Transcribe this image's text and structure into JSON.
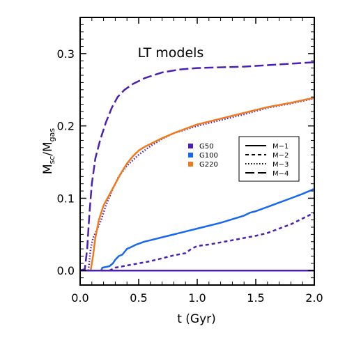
{
  "chart_data": {
    "type": "line",
    "title": "LT models",
    "xlabel": "t (Gyr)",
    "ylabel_main": "M",
    "ylabel_sub1": "sc",
    "ylabel_sep": "/M",
    "ylabel_sub2": "gas",
    "xlim": [
      0,
      2
    ],
    "ylim": [
      -0.02,
      0.35
    ],
    "x_ticks": [
      0,
      0.5,
      1.0,
      1.5,
      2.0
    ],
    "x_tick_labels": [
      "0.0",
      "0.5",
      "1.0",
      "1.5",
      "2.0"
    ],
    "y_ticks": [
      0,
      0.1,
      0.2,
      0.3
    ],
    "y_tick_labels": [
      "0.0",
      "0.1",
      "0.2",
      "0.3"
    ],
    "grid": false,
    "color_legend": [
      {
        "label": "G50",
        "color": "#4b1fb4"
      },
      {
        "label": "G100",
        "color": "#1767f0"
      },
      {
        "label": "G220",
        "color": "#f07a1c"
      }
    ],
    "style_legend": [
      {
        "label": "M−1",
        "dash": ""
      },
      {
        "label": "M−2",
        "dash": "5,4"
      },
      {
        "label": "M−3",
        "dash": "1.5,2.5"
      },
      {
        "label": "M−4",
        "dash": "13,5"
      }
    ],
    "series": [
      {
        "color": "#4b1fb4",
        "dash": "13,5",
        "x": [
          0,
          0.04,
          0.06,
          0.08,
          0.1,
          0.13,
          0.17,
          0.22,
          0.27,
          0.32,
          0.38,
          0.45,
          0.55,
          0.7,
          0.85,
          1.0,
          1.2,
          1.4,
          1.6,
          1.8,
          2.0
        ],
        "y": [
          0,
          0.002,
          0.03,
          0.08,
          0.12,
          0.155,
          0.18,
          0.205,
          0.225,
          0.24,
          0.25,
          0.258,
          0.266,
          0.274,
          0.278,
          0.28,
          0.281,
          0.282,
          0.284,
          0.286,
          0.288
        ]
      },
      {
        "color": "#4b1fb4",
        "dash": "1.5,2.5",
        "x": [
          0,
          0.07,
          0.09,
          0.11,
          0.14,
          0.18,
          0.22,
          0.27,
          0.33,
          0.4,
          0.5,
          0.6,
          0.7,
          0.8,
          1.0,
          1.2,
          1.4,
          1.6,
          1.8,
          2.0
        ],
        "y": [
          0,
          0,
          0.03,
          0.045,
          0.055,
          0.07,
          0.09,
          0.11,
          0.13,
          0.145,
          0.16,
          0.172,
          0.182,
          0.19,
          0.2,
          0.208,
          0.216,
          0.225,
          0.231,
          0.238
        ]
      },
      {
        "color": "#f07a1c",
        "dash": "",
        "x": [
          0,
          0.09,
          0.11,
          0.13,
          0.16,
          0.2,
          0.25,
          0.3,
          0.35,
          0.4,
          0.45,
          0.5,
          0.55,
          0.6,
          0.7,
          0.8,
          0.9,
          1.0,
          1.2,
          1.4,
          1.6,
          1.8,
          2.0
        ],
        "y": [
          0,
          0,
          0.02,
          0.045,
          0.07,
          0.09,
          0.105,
          0.12,
          0.135,
          0.148,
          0.158,
          0.166,
          0.171,
          0.175,
          0.183,
          0.19,
          0.196,
          0.202,
          0.21,
          0.218,
          0.226,
          0.232,
          0.239
        ]
      },
      {
        "color": "#1767f0",
        "dash": "",
        "x": [
          0.18,
          0.19,
          0.25,
          0.28,
          0.3,
          0.33,
          0.36,
          0.4,
          0.43,
          0.48,
          0.55,
          0.6,
          0.7,
          0.8,
          0.9,
          1.0,
          1.1,
          1.2,
          1.3,
          1.4,
          1.45,
          1.5,
          1.6,
          1.7,
          1.8,
          1.9,
          2.0
        ],
        "y": [
          0,
          0.004,
          0.006,
          0.01,
          0.015,
          0.02,
          0.022,
          0.03,
          0.032,
          0.036,
          0.04,
          0.042,
          0.046,
          0.05,
          0.054,
          0.058,
          0.062,
          0.066,
          0.071,
          0.076,
          0.08,
          0.082,
          0.088,
          0.094,
          0.1,
          0.106,
          0.113
        ]
      },
      {
        "color": "#4b1fb4",
        "dash": "5,4",
        "x": [
          0.25,
          0.3,
          0.4,
          0.5,
          0.6,
          0.7,
          0.8,
          0.9,
          0.95,
          1.0,
          1.1,
          1.2,
          1.3,
          1.4,
          1.5,
          1.6,
          1.7,
          1.8,
          1.9,
          2.0
        ],
        "y": [
          0,
          0.004,
          0.007,
          0.01,
          0.013,
          0.017,
          0.021,
          0.024,
          0.03,
          0.034,
          0.036,
          0.039,
          0.042,
          0.045,
          0.048,
          0.052,
          0.058,
          0.064,
          0.072,
          0.08
        ]
      },
      {
        "color": "#4b1fb4",
        "dash": "",
        "x": [
          0,
          2.0
        ],
        "y": [
          0,
          0
        ]
      }
    ]
  }
}
